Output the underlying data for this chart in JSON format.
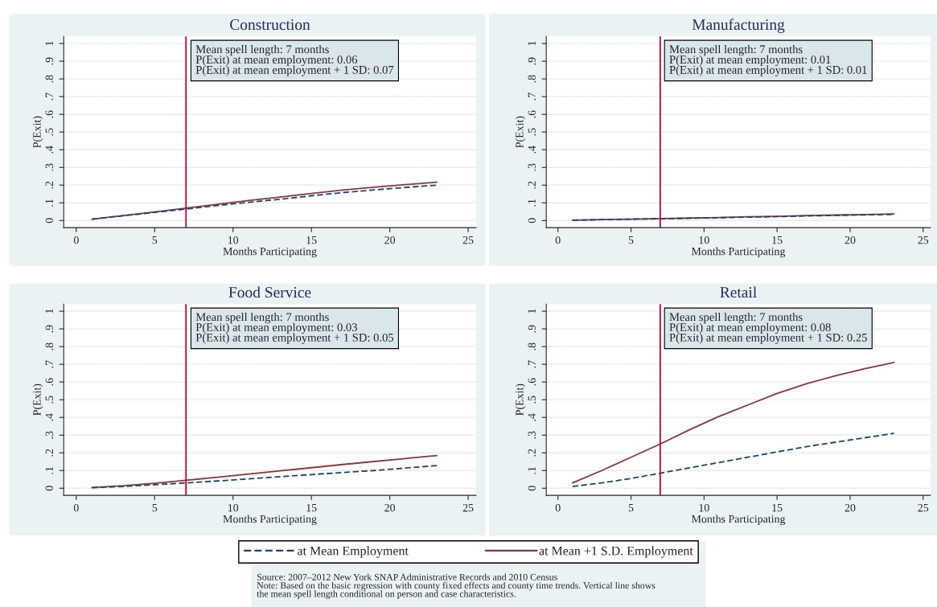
{
  "chart_data": [
    {
      "type": "line",
      "title": "Construction",
      "xlabel": "Months Participating",
      "ylabel": "P(Exit)",
      "x": [
        1,
        3,
        5,
        7,
        9,
        11,
        13,
        15,
        17,
        19,
        21,
        23
      ],
      "xlim": [
        -0.8,
        25.5
      ],
      "ylim": [
        -0.04,
        1.04
      ],
      "xticks": [
        0,
        5,
        10,
        15,
        20,
        25
      ],
      "yticks": [
        0,
        {
          "value": 0.1,
          "label": ".1"
        },
        {
          "value": 0.2,
          "label": ".2"
        },
        {
          "value": 0.3,
          "label": ".3"
        },
        {
          "value": 0.4,
          "label": ".4"
        },
        {
          "value": 0.5,
          "label": ".5"
        },
        {
          "value": 0.6,
          "label": ".6"
        },
        {
          "value": 0.7,
          "label": ".7"
        },
        {
          "value": 0.8,
          "label": ".8"
        },
        {
          "value": 0.9,
          "label": ".9"
        },
        1
      ],
      "grid": "y",
      "legend": false,
      "series": [
        {
          "color": "#1a476f",
          "line_style": "dashed",
          "values": [
            0.008,
            0.027,
            0.046,
            0.065,
            0.085,
            0.103,
            0.12,
            0.14,
            0.158,
            0.173,
            0.187,
            0.2
          ]
        },
        {
          "color": "#90353b",
          "line_style": "solid",
          "values": [
            0.008,
            0.028,
            0.049,
            0.07,
            0.092,
            0.113,
            0.133,
            0.153,
            0.172,
            0.188,
            0.203,
            0.217
          ]
        }
      ],
      "ref_lines": [
        {
          "axis": "x",
          "value": 7,
          "color": "#c10534"
        }
      ],
      "annotations": [
        "Mean spell length: 7 months",
        "P(Exit) at mean employment: 0.06",
        "P(Exit) at mean employment + 1 SD: 0.07"
      ]
    },
    {
      "type": "line",
      "title": "Manufacturing",
      "xlabel": "Months Participating",
      "ylabel": "P(Exit)",
      "x": [
        1,
        3,
        5,
        7,
        9,
        11,
        13,
        15,
        17,
        19,
        21,
        23
      ],
      "xlim": [
        -0.8,
        25.5
      ],
      "ylim": [
        -0.04,
        1.04
      ],
      "xticks": [
        0,
        5,
        10,
        15,
        20,
        25
      ],
      "yticks": [
        0,
        {
          "value": 0.1,
          "label": ".1"
        },
        {
          "value": 0.2,
          "label": ".2"
        },
        {
          "value": 0.3,
          "label": ".3"
        },
        {
          "value": 0.4,
          "label": ".4"
        },
        {
          "value": 0.5,
          "label": ".5"
        },
        {
          "value": 0.6,
          "label": ".6"
        },
        {
          "value": 0.7,
          "label": ".7"
        },
        {
          "value": 0.8,
          "label": ".8"
        },
        {
          "value": 0.9,
          "label": ".9"
        },
        1
      ],
      "grid": "y",
      "legend": false,
      "series": [
        {
          "color": "#1a476f",
          "line_style": "dashed",
          "values": [
            0.002,
            0.005,
            0.008,
            0.01,
            0.013,
            0.016,
            0.019,
            0.022,
            0.026,
            0.029,
            0.032,
            0.035
          ]
        },
        {
          "color": "#90353b",
          "line_style": "solid",
          "values": [
            0.002,
            0.005,
            0.008,
            0.011,
            0.014,
            0.017,
            0.021,
            0.024,
            0.028,
            0.031,
            0.034,
            0.037
          ]
        }
      ],
      "ref_lines": [
        {
          "axis": "x",
          "value": 7,
          "color": "#c10534"
        }
      ],
      "annotations": [
        "Mean spell length: 7 months",
        "P(Exit) at mean employment: 0.01",
        "P(Exit) at mean employment + 1 SD: 0.01"
      ]
    },
    {
      "type": "line",
      "title": "Food Service",
      "xlabel": "Months Participating",
      "ylabel": "P(Exit)",
      "x": [
        1,
        3,
        5,
        7,
        9,
        11,
        13,
        15,
        17,
        19,
        21,
        23
      ],
      "xlim": [
        -0.8,
        25.5
      ],
      "ylim": [
        -0.04,
        1.04
      ],
      "xticks": [
        0,
        5,
        10,
        15,
        20,
        25
      ],
      "yticks": [
        0,
        {
          "value": 0.1,
          "label": ".1"
        },
        {
          "value": 0.2,
          "label": ".2"
        },
        {
          "value": 0.3,
          "label": ".3"
        },
        {
          "value": 0.4,
          "label": ".4"
        },
        {
          "value": 0.5,
          "label": ".5"
        },
        {
          "value": 0.6,
          "label": ".6"
        },
        {
          "value": 0.7,
          "label": ".7"
        },
        {
          "value": 0.8,
          "label": ".8"
        },
        {
          "value": 0.9,
          "label": ".9"
        },
        1
      ],
      "grid": "y",
      "legend": false,
      "series": [
        {
          "color": "#1a476f",
          "line_style": "dashed",
          "values": [
            0.003,
            0.01,
            0.02,
            0.03,
            0.041,
            0.053,
            0.065,
            0.077,
            0.089,
            0.1,
            0.114,
            0.128
          ]
        },
        {
          "color": "#90353b",
          "line_style": "solid",
          "values": [
            0.004,
            0.014,
            0.028,
            0.045,
            0.062,
            0.08,
            0.098,
            0.116,
            0.134,
            0.151,
            0.168,
            0.185
          ]
        }
      ],
      "ref_lines": [
        {
          "axis": "x",
          "value": 7,
          "color": "#c10534"
        }
      ],
      "annotations": [
        "Mean spell length: 7 months",
        "P(Exit) at mean employment: 0.03",
        "P(Exit) at mean employment + 1 SD: 0.05"
      ]
    },
    {
      "type": "line",
      "title": "Retail",
      "xlabel": "Months Participating",
      "ylabel": "P(Exit)",
      "x": [
        1,
        3,
        5,
        7,
        9,
        11,
        13,
        15,
        17,
        19,
        21,
        23
      ],
      "xlim": [
        -0.8,
        25.5
      ],
      "ylim": [
        -0.04,
        1.04
      ],
      "xticks": [
        0,
        5,
        10,
        15,
        20,
        25
      ],
      "yticks": [
        0,
        {
          "value": 0.1,
          "label": ".1"
        },
        {
          "value": 0.2,
          "label": ".2"
        },
        {
          "value": 0.3,
          "label": ".3"
        },
        {
          "value": 0.4,
          "label": ".4"
        },
        {
          "value": 0.5,
          "label": ".5"
        },
        {
          "value": 0.6,
          "label": ".6"
        },
        {
          "value": 0.7,
          "label": ".7"
        },
        {
          "value": 0.8,
          "label": ".8"
        },
        {
          "value": 0.9,
          "label": ".9"
        },
        1
      ],
      "grid": "y",
      "legend": "bottom",
      "series": [
        {
          "name": "at Mean Employment",
          "color": "#1a476f",
          "line_style": "dashed",
          "values": [
            0.01,
            0.03,
            0.055,
            0.085,
            0.115,
            0.145,
            0.175,
            0.205,
            0.235,
            0.26,
            0.285,
            0.31
          ]
        },
        {
          "name": "at Mean +1 S.D. Employment",
          "color": "#90353b",
          "line_style": "solid",
          "values": [
            0.03,
            0.1,
            0.175,
            0.25,
            0.33,
            0.405,
            0.47,
            0.535,
            0.59,
            0.635,
            0.675,
            0.71
          ]
        }
      ],
      "ref_lines": [
        {
          "axis": "x",
          "value": 7,
          "color": "#c10534"
        }
      ],
      "annotations": [
        "Mean spell length: 7 months",
        "P(Exit) at mean employment: 0.08",
        "P(Exit) at mean employment + 1 SD: 0.25",
        "Source: 2007–2012 New York SNAP Administrative Records and 2010 Census",
        "Note: Based on the basic regression with county fixed effects and county time trends. Vertical line shows\nthe mean spell length conditional on person and case characteristics."
      ]
    }
  ]
}
